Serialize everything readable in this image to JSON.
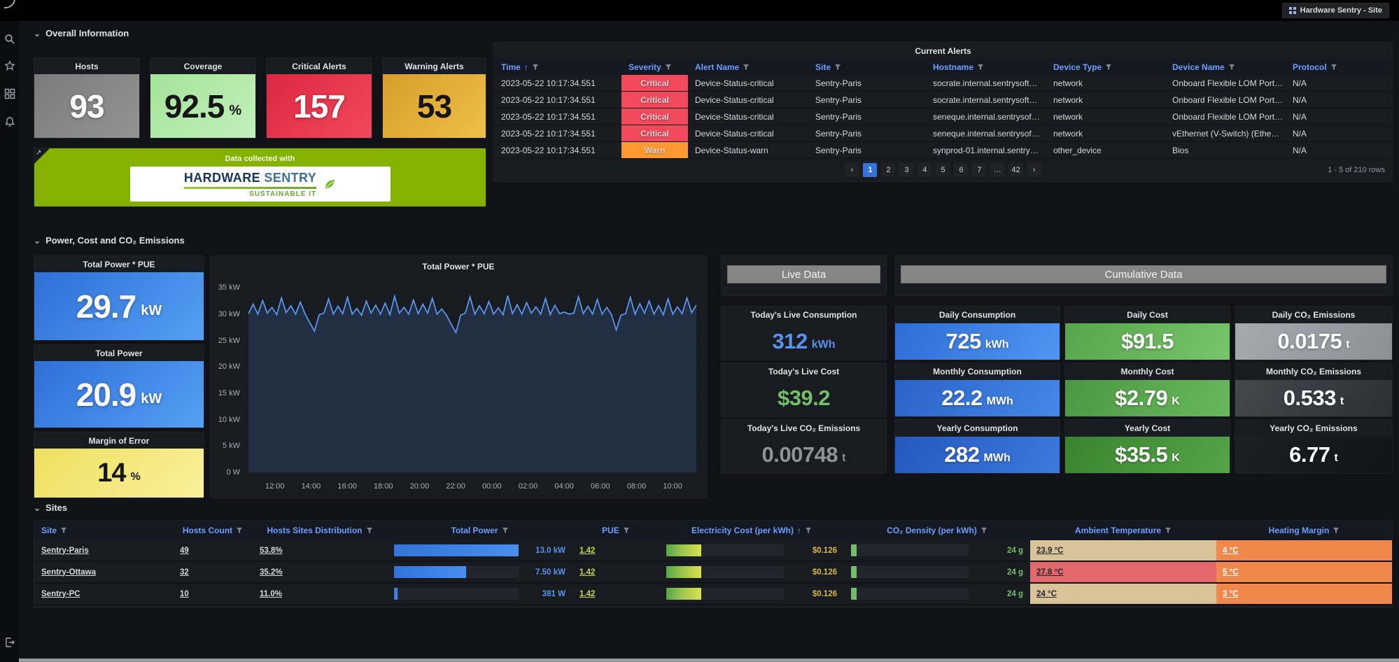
{
  "topbar": {
    "app_button_label": "Hardware Sentry - Site"
  },
  "sidebar_icons": [
    "search-icon",
    "star-icon",
    "apps-icon",
    "alerts-bell-icon",
    "exit-icon"
  ],
  "colors": {
    "critical": "#F2495C",
    "warning": "#FF9830",
    "accent_blue": "#3274D9",
    "link_blue": "#6E9FFF",
    "value_blue": "#5794F2",
    "value_green": "#73BF69",
    "value_gold": "#D7BA45",
    "brand_green": "#85B200"
  },
  "overall": {
    "title": "Overall Information",
    "stats": [
      {
        "label": "Hosts",
        "value": "93",
        "unit": ""
      },
      {
        "label": "Coverage",
        "value": "92.5",
        "unit": "%"
      },
      {
        "label": "Critical Alerts",
        "value": "157",
        "unit": ""
      },
      {
        "label": "Warning Alerts",
        "value": "53",
        "unit": ""
      }
    ],
    "logo_panel": {
      "caption": "Data collected with",
      "brand_bold": "HARDWARE",
      "brand_light": "SENTRY",
      "tagline": "SUSTAINABLE IT"
    },
    "alerts": {
      "title": "Current Alerts",
      "columns": [
        "Time",
        "Severity",
        "Alert Name",
        "Site",
        "Hostname",
        "Device Type",
        "Device Name",
        "Protocol"
      ],
      "sort_indicator": "↑",
      "rows": [
        {
          "time": "2023-05-22 10:17:34.551",
          "severity": "Critical",
          "alert_name": "Device-Status-critical",
          "site": "Sentry-Paris",
          "hostname": "socrate.internal.sentrysoft…",
          "device_type": "network",
          "device_name": "Onboard Flexible LOM Port…",
          "protocol": "N/A"
        },
        {
          "time": "2023-05-22 10:17:34.551",
          "severity": "Critical",
          "alert_name": "Device-Status-critical",
          "site": "Sentry-Paris",
          "hostname": "socrate.internal.sentrysoft…",
          "device_type": "network",
          "device_name": "Onboard Flexible LOM Port…",
          "protocol": "N/A"
        },
        {
          "time": "2023-05-22 10:17:34.551",
          "severity": "Critical",
          "alert_name": "Device-Status-critical",
          "site": "Sentry-Paris",
          "hostname": "seneque.internal.sentrysof…",
          "device_type": "network",
          "device_name": "Onboard Flexible LOM Port…",
          "protocol": "N/A"
        },
        {
          "time": "2023-05-22 10:17:34.551",
          "severity": "Critical",
          "alert_name": "Device-Status-critical",
          "site": "Sentry-Paris",
          "hostname": "seneque.internal.sentrysof…",
          "device_type": "network",
          "device_name": "vEthernet (V-Switch) (Ethe…",
          "protocol": "N/A"
        },
        {
          "time": "2023-05-22 10:17:34.551",
          "severity": "Warn",
          "alert_name": "Device-Status-warn",
          "site": "Sentry-Paris",
          "hostname": "synprod-01.internal.sentry…",
          "device_type": "other_device",
          "device_name": "Bios",
          "protocol": "N/A"
        }
      ],
      "pagination": {
        "prev": "‹",
        "pages": [
          "1",
          "2",
          "3",
          "4",
          "5",
          "6",
          "7",
          "…",
          "42"
        ],
        "active_page": "1",
        "next": "›",
        "summary": "1 - 5 of 210 rows"
      }
    }
  },
  "power": {
    "title": "Power, Cost and CO₂ Emissions",
    "stats": [
      {
        "label": "Total Power * PUE",
        "value": "29.7",
        "unit": "kW"
      },
      {
        "label": "Total Power",
        "value": "20.9",
        "unit": "kW"
      },
      {
        "label": "Margin of Error",
        "value": "14",
        "unit": "%"
      }
    ],
    "live": {
      "header": "Live Data",
      "stats": [
        {
          "label": "Today's Live Consumption",
          "value": "312",
          "unit": "kWh"
        },
        {
          "label": "Today's Live Cost",
          "value": "$39.2",
          "unit": ""
        },
        {
          "label": "Today's Live CO₂ Emissions",
          "value": "0.00748",
          "unit": "t"
        }
      ]
    },
    "cumulative": {
      "header": "Cumulative Data",
      "stats": [
        {
          "label": "Daily Consumption",
          "value": "725",
          "unit": "kWh"
        },
        {
          "label": "Daily Cost",
          "value": "$91.5",
          "unit": ""
        },
        {
          "label": "Daily CO₂ Emissions",
          "value": "0.0175",
          "unit": "t"
        },
        {
          "label": "Monthly Consumption",
          "value": "22.2",
          "unit": "MWh"
        },
        {
          "label": "Monthly Cost",
          "value": "$2.79",
          "unit": "K"
        },
        {
          "label": "Monthly CO₂ Emissions",
          "value": "0.533",
          "unit": "t"
        },
        {
          "label": "Yearly Consumption",
          "value": "282",
          "unit": "MWh"
        },
        {
          "label": "Yearly Cost",
          "value": "$35.5",
          "unit": "K"
        },
        {
          "label": "Yearly CO₂ Emissions",
          "value": "6.77",
          "unit": "t"
        }
      ]
    }
  },
  "sites": {
    "title": "Sites",
    "columns": [
      "Site",
      "Hosts Count",
      "Hosts Sites Distribution",
      "Total Power",
      "PUE",
      "Electricity Cost (per kWh)",
      "CO₂ Density (per kWh)",
      "Ambient Temperature",
      "Heating Margin"
    ],
    "electricity_sort_indicator": "↑",
    "rows": [
      {
        "site": "Sentry-Paris",
        "hosts_count": "49",
        "distribution": "53.8%",
        "total_power": "13.0 kW",
        "total_power_pct": 100,
        "pue": "1.42",
        "electricity_cost": "$0.126",
        "electricity_cost_pct": 30,
        "co2_density": "24 g",
        "co2_density_pct": 5,
        "ambient_temperature": "23.9 °C",
        "heating_margin": "4 °C"
      },
      {
        "site": "Sentry-Ottawa",
        "hosts_count": "32",
        "distribution": "35.2%",
        "total_power": "7.50 kW",
        "total_power_pct": 58,
        "pue": "1.42",
        "electricity_cost": "$0.126",
        "electricity_cost_pct": 30,
        "co2_density": "24 g",
        "co2_density_pct": 5,
        "ambient_temperature": "27.8 °C",
        "heating_margin": "5 °C"
      },
      {
        "site": "Sentry-PC",
        "hosts_count": "10",
        "distribution": "11.0%",
        "total_power": "381 W",
        "total_power_pct": 3,
        "pue": "1.42",
        "electricity_cost": "$0.126",
        "electricity_cost_pct": 30,
        "co2_density": "24 g",
        "co2_density_pct": 5,
        "ambient_temperature": "24 °C",
        "heating_margin": "3 °C"
      }
    ]
  },
  "chart_data": {
    "type": "line",
    "title": "Total Power * PUE",
    "unit": "kW",
    "ylim": [
      0,
      36.5
    ],
    "grid": true,
    "y_tick_labels": [
      "35 kW",
      "30 kW",
      "25 kW",
      "20 kW",
      "15 kW",
      "10 kW",
      "5 kW",
      "0 W"
    ],
    "y_tick_values": [
      35,
      30,
      25,
      20,
      15,
      10,
      5,
      0
    ],
    "x_ticks": [
      "12:00",
      "14:00",
      "16:00",
      "18:00",
      "20:00",
      "22:00",
      "00:00",
      "02:00",
      "04:00",
      "06:00",
      "08:00",
      "10:00"
    ],
    "values": [
      30.1,
      31.9,
      30.0,
      32.6,
      30.2,
      31.3,
      29.9,
      33.1,
      30.3,
      31.6,
      30.0,
      32.3,
      30.1,
      28.4,
      26.8,
      29.9,
      30.2,
      32.9,
      30.0,
      31.5,
      30.1,
      33.2,
      30.0,
      31.1,
      29.8,
      32.5,
      30.2,
      31.7,
      30.0,
      32.1,
      29.9,
      33.4,
      30.2,
      31.3,
      30.0,
      32.7,
      30.1,
      31.9,
      30.2,
      33.0,
      30.0,
      31.0,
      29.8,
      28.1,
      26.5,
      29.8,
      30.2,
      33.3,
      30.0,
      31.6,
      30.1,
      32.4,
      30.0,
      31.2,
      29.9,
      33.5,
      30.1,
      31.8,
      30.0,
      32.2,
      30.2,
      31.4,
      30.0,
      33.0,
      29.9,
      31.7,
      30.1,
      30.4,
      30.0,
      30.2,
      33.3,
      30.1,
      31.5,
      30.0,
      32.8,
      30.0,
      31.3,
      29.9,
      27.0,
      29.8,
      30.1,
      33.2,
      30.0,
      32.0,
      30.2,
      32.5,
      30.0,
      31.6,
      29.9,
      32.9,
      30.0,
      31.4,
      30.1,
      33.1,
      30.3,
      31.7
    ]
  }
}
